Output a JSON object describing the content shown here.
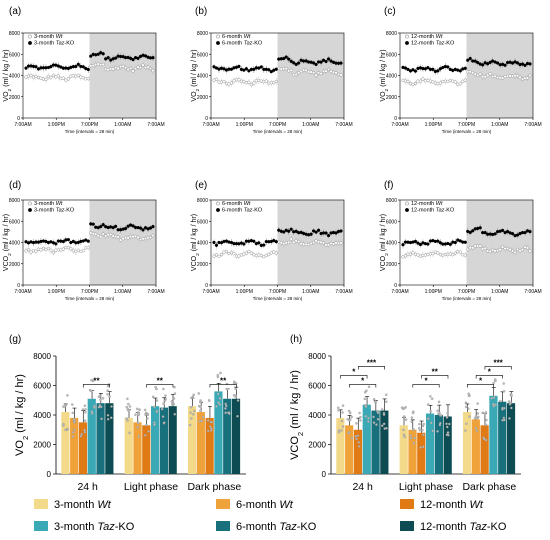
{
  "figure": {
    "ts_xticks": [
      "7:00AM",
      "1:00PM",
      "7:00PM",
      "1:00AM",
      "7:00AM"
    ],
    "ts_yticks": [
      "0",
      "2000",
      "4000",
      "6000",
      "8000"
    ],
    "ts_xlabel": "Time (intervals = 28 min)",
    "legend_wt_suffix": "Wt",
    "legend_ko_suffix": "Taz-KO",
    "bar_legend": [
      {
        "group": "3-month",
        "genotype": "Wt",
        "color": "#f3d98a"
      },
      {
        "group": "6-month",
        "genotype": "Wt",
        "color": "#f0a23a"
      },
      {
        "group": "12-month",
        "genotype": "Wt",
        "color": "#e07a14"
      },
      {
        "group": "3-month",
        "genotype": "Taz-KO",
        "color": "#3aa9b5"
      },
      {
        "group": "6-month",
        "genotype": "Taz-KO",
        "color": "#17707c"
      },
      {
        "group": "12-month",
        "genotype": "Taz-KO",
        "color": "#0d4c52"
      }
    ]
  },
  "chart_data": [
    {
      "panel": "(a)",
      "type": "scatter",
      "ylabel": "VO2 (ml / kg / hr)",
      "xlabel": "Time (intervals = 28 min)",
      "ylim": [
        0,
        8000
      ],
      "dark_phase": [
        "7:00PM",
        "7:00AM"
      ],
      "series": [
        {
          "name": "3-month Wt",
          "marker": "open",
          "mean_by_phase": {
            "light": 3800,
            "dark": 4700
          }
        },
        {
          "name": "3-month Taz-KO",
          "marker": "filled",
          "mean_by_phase": {
            "light": 4800,
            "dark": 5700
          }
        }
      ]
    },
    {
      "panel": "(b)",
      "type": "scatter",
      "ylabel": "VO2 (ml / kg / hr)",
      "xlabel": "Time (intervals = 28 min)",
      "ylim": [
        0,
        8000
      ],
      "dark_phase": [
        "7:00PM",
        "7:00AM"
      ],
      "series": [
        {
          "name": "6-month Wt",
          "marker": "open",
          "mean_by_phase": {
            "light": 3400,
            "dark": 4300
          }
        },
        {
          "name": "6-month Taz-KO",
          "marker": "filled",
          "mean_by_phase": {
            "light": 4600,
            "dark": 5300
          }
        }
      ]
    },
    {
      "panel": "(c)",
      "type": "scatter",
      "ylabel": "VO2 (ml / kg / hr)",
      "xlabel": "Time (intervals = 28 min)",
      "ylim": [
        0,
        8000
      ],
      "dark_phase": [
        "7:00PM",
        "7:00AM"
      ],
      "series": [
        {
          "name": "12-month Wt",
          "marker": "open",
          "mean_by_phase": {
            "light": 3400,
            "dark": 3900
          }
        },
        {
          "name": "12-month Taz-KO",
          "marker": "filled",
          "mean_by_phase": {
            "light": 4600,
            "dark": 5100
          }
        }
      ]
    },
    {
      "panel": "(d)",
      "type": "scatter",
      "ylabel": "VCO2 (ml / kg / hr)",
      "xlabel": "Time (intervals = 28 min)",
      "ylim": [
        0,
        8000
      ],
      "dark_phase": [
        "7:00PM",
        "7:00AM"
      ],
      "series": [
        {
          "name": "3-month Wt",
          "marker": "open",
          "mean_by_phase": {
            "light": 3300,
            "dark": 4500
          }
        },
        {
          "name": "3-month Taz-KO",
          "marker": "filled",
          "mean_by_phase": {
            "light": 4100,
            "dark": 5400
          }
        }
      ]
    },
    {
      "panel": "(e)",
      "type": "scatter",
      "ylabel": "VCO2 (ml / kg / hr)",
      "xlabel": "Time (intervals = 28 min)",
      "ylim": [
        0,
        8000
      ],
      "dark_phase": [
        "7:00PM",
        "7:00AM"
      ],
      "series": [
        {
          "name": "6-month Wt",
          "marker": "open",
          "mean_by_phase": {
            "light": 2900,
            "dark": 3900
          }
        },
        {
          "name": "6-month Taz-KO",
          "marker": "filled",
          "mean_by_phase": {
            "light": 4000,
            "dark": 4900
          }
        }
      ]
    },
    {
      "panel": "(f)",
      "type": "scatter",
      "ylabel": "VCO2 (ml / kg / hr)",
      "xlabel": "Time (intervals = 28 min)",
      "ylim": [
        0,
        8000
      ],
      "dark_phase": [
        "7:00PM",
        "7:00AM"
      ],
      "series": [
        {
          "name": "12-month Wt",
          "marker": "open",
          "mean_by_phase": {
            "light": 2900,
            "dark": 3300
          }
        },
        {
          "name": "12-month Taz-KO",
          "marker": "filled",
          "mean_by_phase": {
            "light": 4000,
            "dark": 4900
          }
        }
      ]
    },
    {
      "panel": "(g)",
      "type": "bar",
      "ylabel": "VO2 (ml / kg / hr)",
      "ylim": [
        0,
        8000
      ],
      "yticks": [
        0,
        2000,
        4000,
        6000,
        8000
      ],
      "categories": [
        "24 h",
        "Light phase",
        "Dark phase"
      ],
      "series": [
        {
          "name": "3-month Wt",
          "values": [
            4200,
            3800,
            4600
          ]
        },
        {
          "name": "6-month Wt",
          "values": [
            3800,
            3500,
            4200
          ]
        },
        {
          "name": "12-month Wt",
          "values": [
            3500,
            3300,
            3800
          ]
        },
        {
          "name": "3-month Taz-KO",
          "values": [
            5100,
            4600,
            5600
          ]
        },
        {
          "name": "6-month Taz-KO",
          "values": [
            4800,
            4500,
            5100
          ]
        },
        {
          "name": "12-month Taz-KO",
          "values": [
            4800,
            4600,
            5100
          ]
        }
      ],
      "annotations": [
        {
          "category": "24 h",
          "from": "12-month Wt",
          "to": "12-month Taz-KO",
          "text": "**"
        },
        {
          "category": "Light phase",
          "from": "12-month Wt",
          "to": "12-month Taz-KO",
          "text": "**"
        },
        {
          "category": "Dark phase",
          "from": "12-month Wt",
          "to": "12-month Taz-KO",
          "text": "**"
        }
      ]
    },
    {
      "panel": "(h)",
      "type": "bar",
      "ylabel": "VCO2 (ml / kg / hr)",
      "ylim": [
        0,
        8000
      ],
      "yticks": [
        0,
        2000,
        4000,
        6000,
        8000
      ],
      "categories": [
        "24 h",
        "Light phase",
        "Dark phase"
      ],
      "series": [
        {
          "name": "3-month Wt",
          "values": [
            3800,
            3300,
            4200
          ]
        },
        {
          "name": "6-month Wt",
          "values": [
            3300,
            3000,
            3700
          ]
        },
        {
          "name": "12-month Wt",
          "values": [
            3000,
            2800,
            3300
          ]
        },
        {
          "name": "3-month Taz-KO",
          "values": [
            4700,
            4100,
            5300
          ]
        },
        {
          "name": "6-month Taz-KO",
          "values": [
            4300,
            4000,
            4900
          ]
        },
        {
          "name": "12-month Taz-KO",
          "values": [
            4300,
            3900,
            4800
          ]
        }
      ],
      "annotations": [
        {
          "category": "24 h",
          "from": "6-month Wt",
          "to": "6-month Taz-KO",
          "text": "*"
        },
        {
          "category": "24 h",
          "from": "3-month Wt",
          "to": "3-month Taz-KO",
          "text": "*"
        },
        {
          "category": "24 h",
          "from": "12-month Wt",
          "to": "12-month Taz-KO",
          "text": "***"
        },
        {
          "category": "Light phase",
          "from": "6-month Wt",
          "to": "6-month Taz-KO",
          "text": "*"
        },
        {
          "category": "Light phase",
          "from": "12-month Wt",
          "to": "12-month Taz-KO",
          "text": "**"
        },
        {
          "category": "Dark phase",
          "from": "3-month Wt",
          "to": "3-month Taz-KO",
          "text": "*"
        },
        {
          "category": "Dark phase",
          "from": "6-month Wt",
          "to": "6-month Taz-KO",
          "text": "*"
        },
        {
          "category": "Dark phase",
          "from": "12-month Wt",
          "to": "12-month Taz-KO",
          "text": "***"
        }
      ]
    }
  ]
}
